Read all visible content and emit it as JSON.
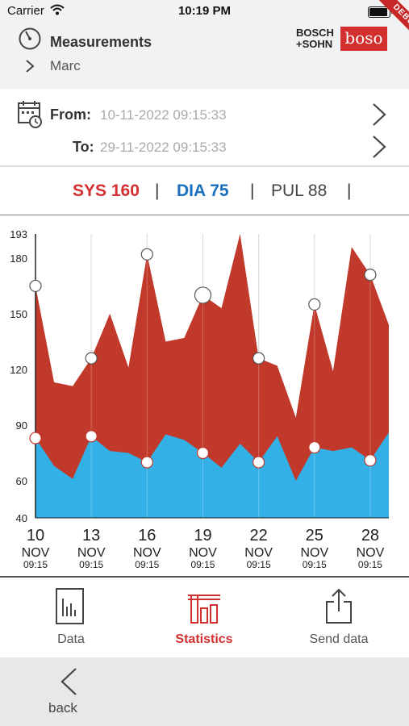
{
  "status_bar": {
    "carrier": "Carrier",
    "time": "10:19 PM",
    "battery_level": 1.0
  },
  "header": {
    "title": "Measurements",
    "subtitle": "Marc",
    "brand_line1": "BOSCH",
    "brand_line2": "+SOHN",
    "brand_logo": "boso",
    "debug_label": "DEBUG"
  },
  "dates": {
    "from_label": "From:",
    "from_value": "10-11-2022 09:15:33",
    "to_label": "To:",
    "to_value": "29-11-2022 09:15:33"
  },
  "summary": {
    "sys": "SYS 160",
    "dia": "DIA 75",
    "pul": "PUL 88",
    "sep": "|",
    "sys_color": "#d32f2f",
    "dia_color": "#1a6fbf"
  },
  "chart_data": {
    "type": "area",
    "ylim": [
      40,
      193
    ],
    "yticks": [
      40,
      60,
      90,
      120,
      150,
      180,
      193
    ],
    "series": [
      {
        "name": "SYS",
        "color": "#c0392b",
        "x": [
          10,
          11,
          12,
          13,
          14,
          15,
          16,
          17,
          18,
          19,
          20,
          21,
          22,
          23,
          24,
          25,
          26,
          27,
          28,
          29
        ],
        "values": [
          165,
          113,
          111,
          126,
          150,
          121,
          182,
          135,
          137,
          160,
          153,
          193,
          126,
          122,
          94,
          155,
          119,
          186,
          171,
          144
        ]
      },
      {
        "name": "DIA",
        "color": "#33b0e6",
        "x": [
          10,
          11,
          12,
          13,
          14,
          15,
          16,
          17,
          18,
          19,
          20,
          21,
          22,
          23,
          24,
          25,
          26,
          27,
          28,
          29
        ],
        "values": [
          83,
          68,
          61,
          84,
          76,
          75,
          70,
          85,
          82,
          75,
          67,
          80,
          70,
          84,
          60,
          78,
          76,
          78,
          71,
          86
        ]
      }
    ],
    "xticks": [
      {
        "day": "10",
        "month": "NOV",
        "time": "09:15"
      },
      {
        "day": "13",
        "month": "NOV",
        "time": "09:15"
      },
      {
        "day": "16",
        "month": "NOV",
        "time": "09:15"
      },
      {
        "day": "19",
        "month": "NOV",
        "time": "09:15"
      },
      {
        "day": "22",
        "month": "NOV",
        "time": "09:15"
      },
      {
        "day": "25",
        "month": "NOV",
        "time": "09:15"
      },
      {
        "day": "28",
        "month": "NOV",
        "time": "09:15"
      }
    ],
    "marker_days": [
      10,
      13,
      16,
      19,
      22,
      25,
      28
    ],
    "grid": true
  },
  "tabs": [
    {
      "label": "Data",
      "icon": "data-icon",
      "active": false
    },
    {
      "label": "Statistics",
      "icon": "statistics-icon",
      "active": true
    },
    {
      "label": "Send data",
      "icon": "share-icon",
      "active": false
    }
  ],
  "active_color": "#d32f2f",
  "back": {
    "label": "back"
  }
}
